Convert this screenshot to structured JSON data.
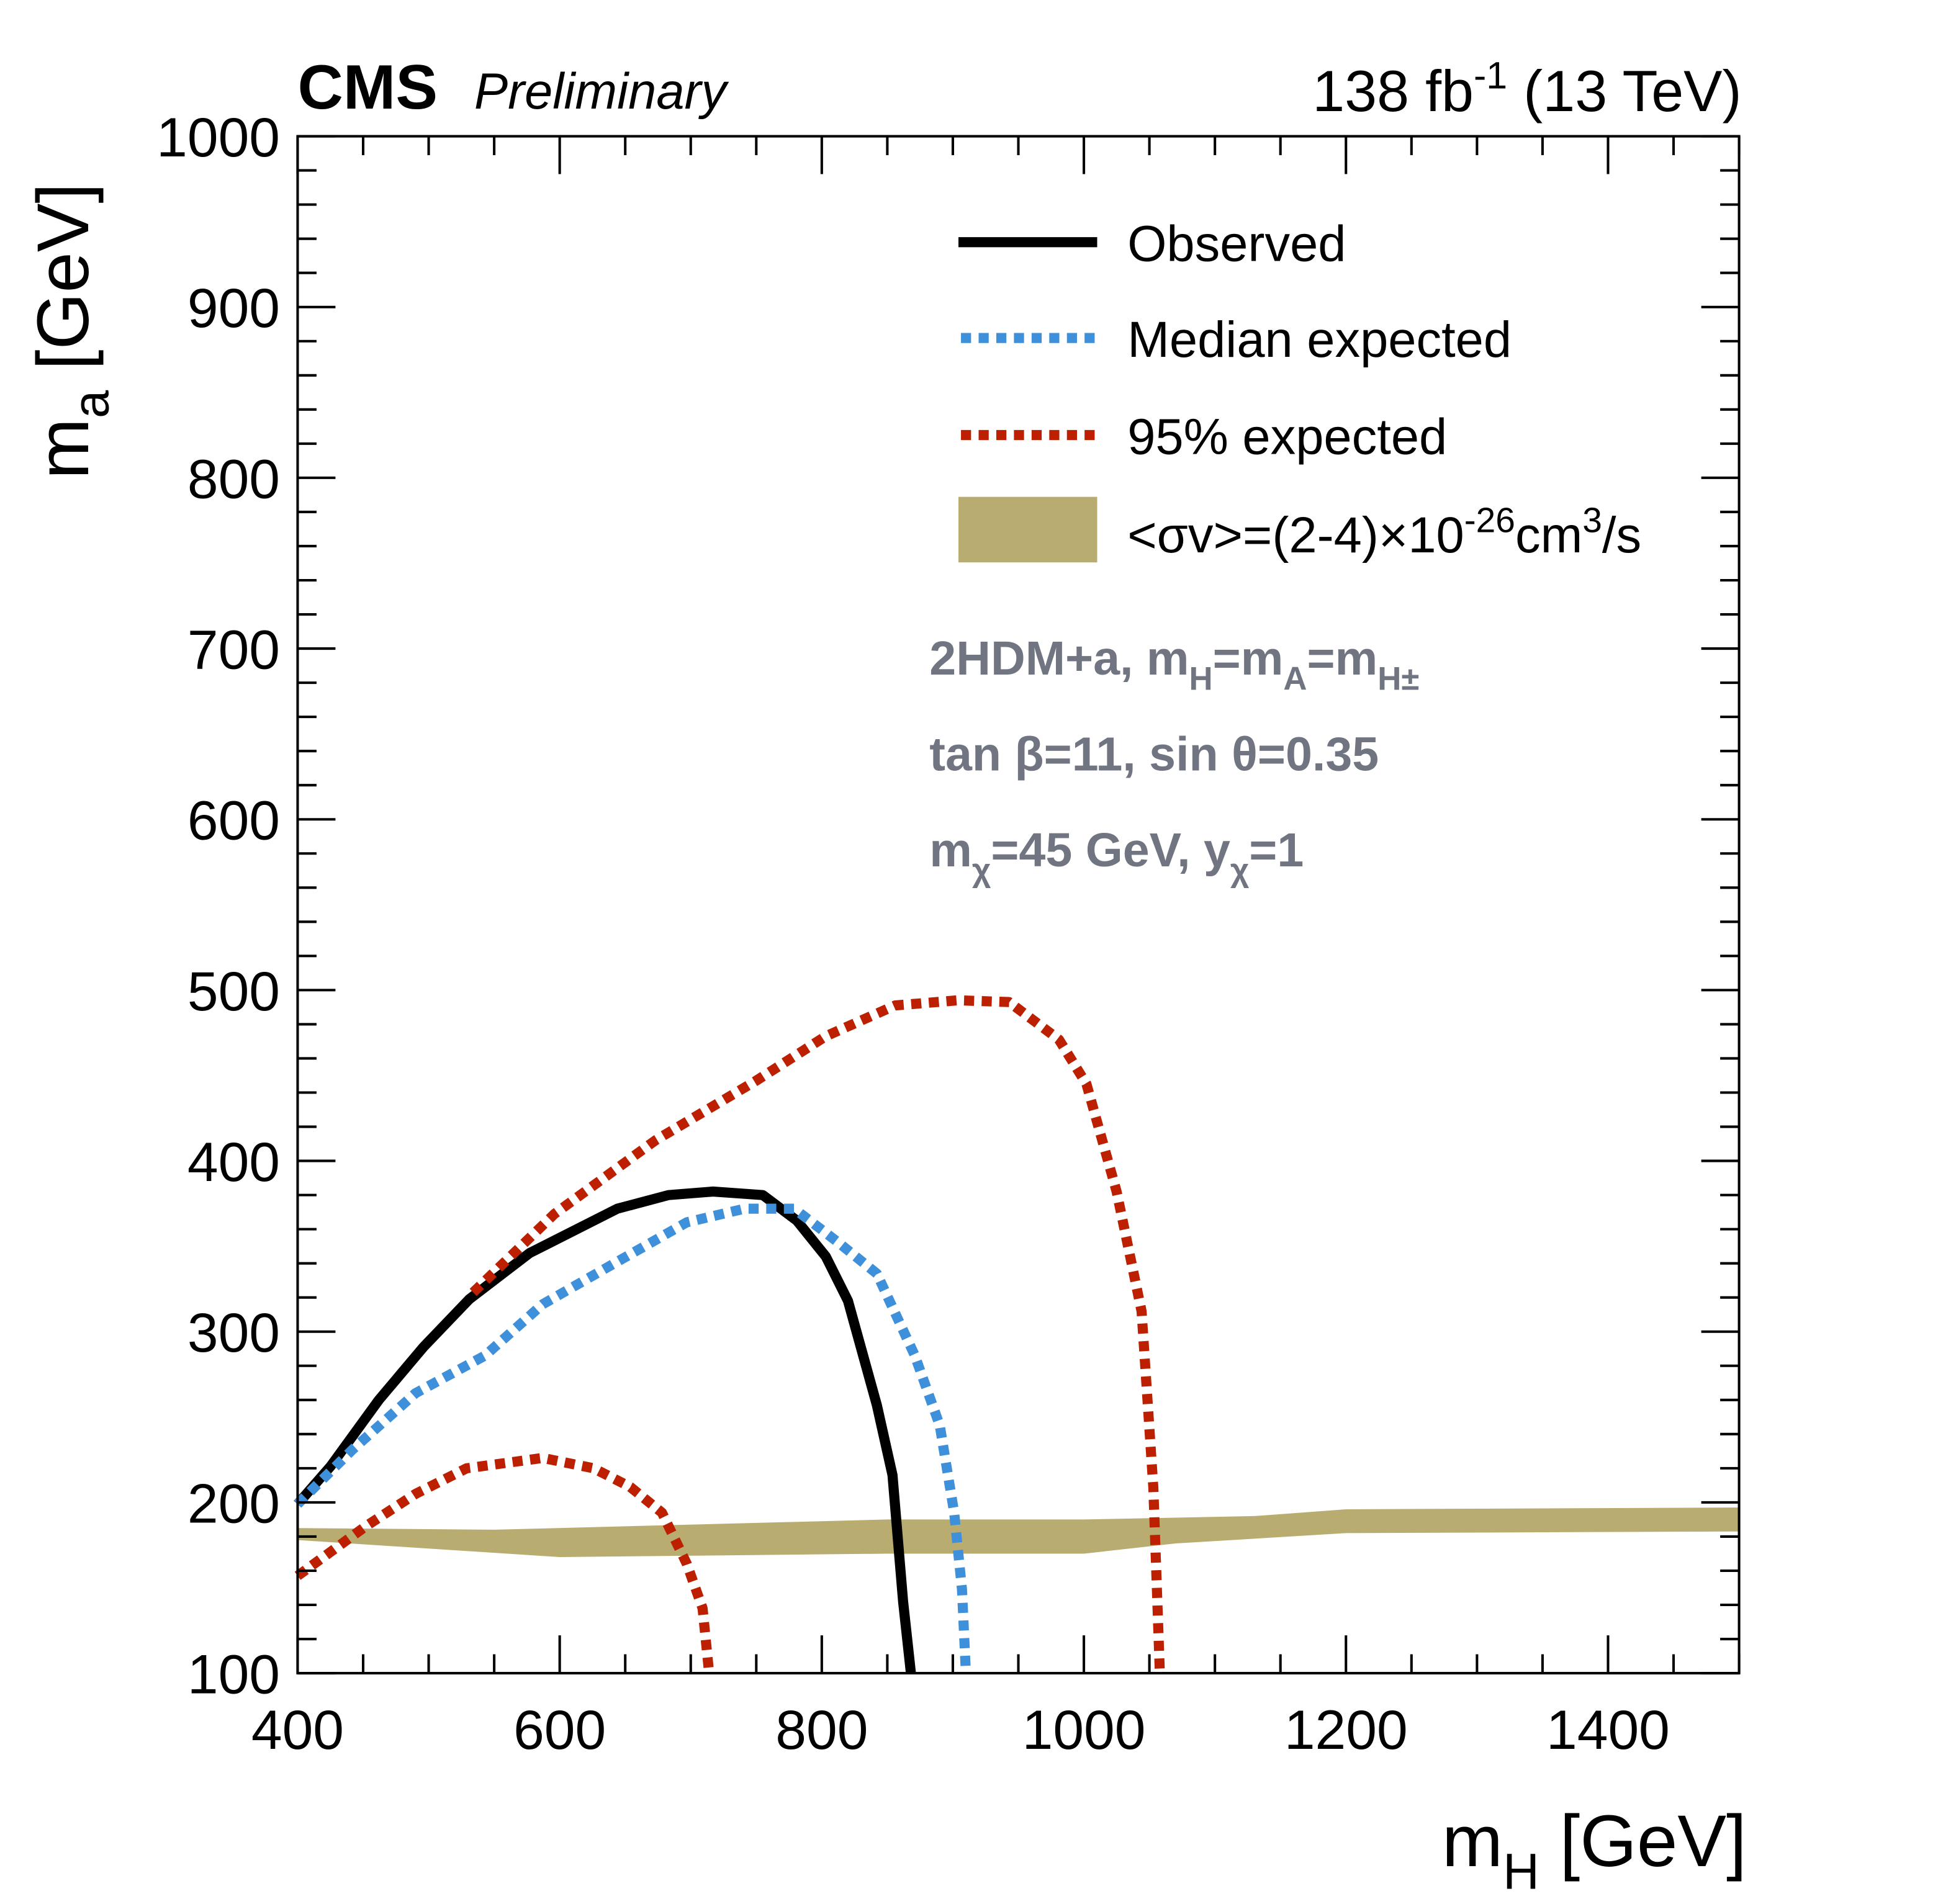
{
  "header": {
    "experiment": "CMS",
    "status": "Preliminary",
    "lumi": "138 fb",
    "lumi_exp": "-1",
    "energy": "(13 TeV)"
  },
  "annotation": {
    "line1": [
      "2HDM+a, m",
      "H",
      "=m",
      "A",
      "=m",
      "H±"
    ],
    "line2": "tan β=11, sin θ=0.35",
    "line3": [
      "m",
      "χ",
      "=45 GeV, y",
      "χ",
      "=1"
    ]
  },
  "chart_data": {
    "type": "line",
    "title": "",
    "xlabel": "m_H [GeV]",
    "ylabel": "m_a [GeV]",
    "xlabel_parts": [
      "m",
      "H",
      " [GeV]"
    ],
    "ylabel_parts": [
      "m",
      "a",
      " [GeV]"
    ],
    "xlim": [
      400,
      1500
    ],
    "ylim": [
      100,
      1000
    ],
    "xticks": [
      400,
      600,
      800,
      1000,
      1200,
      1400
    ],
    "yticks": [
      100,
      200,
      300,
      400,
      500,
      600,
      700,
      800,
      900,
      1000
    ],
    "grid": false,
    "legend_position": "top-right",
    "colors": {
      "observed": "#000000",
      "median": "#3f90da",
      "p95": "#bd1f01",
      "band": "#b9ac70",
      "annotation": "#717581"
    },
    "legend": {
      "observed": "Observed",
      "median": "Median expected",
      "p95": "95% expected",
      "band": [
        "<σv>=(2-4)×10",
        "-26",
        "cm",
        "3",
        "/s"
      ]
    },
    "series": [
      {
        "name": "Observed",
        "key": "observed",
        "points": [
          [
            400,
            199
          ],
          [
            425,
            221
          ],
          [
            462,
            260
          ],
          [
            496,
            291
          ],
          [
            531,
            319
          ],
          [
            577,
            346
          ],
          [
            644,
            372
          ],
          [
            683,
            380
          ],
          [
            717,
            382
          ],
          [
            755,
            380
          ],
          [
            781,
            365
          ],
          [
            803,
            344
          ],
          [
            820,
            318
          ],
          [
            842,
            257
          ],
          [
            854,
            216
          ],
          [
            862,
            142
          ],
          [
            868,
            100
          ]
        ]
      },
      {
        "name": "Median expected",
        "key": "median",
        "points": [
          [
            400,
            199
          ],
          [
            442,
            231
          ],
          [
            490,
            264
          ],
          [
            543,
            286
          ],
          [
            587,
            316
          ],
          [
            644,
            341
          ],
          [
            697,
            364
          ],
          [
            741,
            372
          ],
          [
            779,
            372
          ],
          [
            813,
            352
          ],
          [
            842,
            334
          ],
          [
            871,
            286
          ],
          [
            890,
            245
          ],
          [
            901,
            194
          ],
          [
            907,
            149
          ],
          [
            910,
            100
          ]
        ]
      },
      {
        "name": "95% expected (upper)",
        "key": "p95",
        "points": [
          [
            534,
            323
          ],
          [
            596,
            369
          ],
          [
            673,
            412
          ],
          [
            750,
            447
          ],
          [
            803,
            473
          ],
          [
            856,
            491
          ],
          [
            904,
            494
          ],
          [
            943,
            493
          ],
          [
            981,
            471
          ],
          [
            1002,
            445
          ],
          [
            1025,
            382
          ],
          [
            1044,
            312
          ],
          [
            1053,
            209
          ],
          [
            1058,
            100
          ]
        ]
      },
      {
        "name": "95% expected (lower)",
        "key": "p95",
        "points": [
          [
            400,
            157
          ],
          [
            452,
            186
          ],
          [
            490,
            205
          ],
          [
            529,
            220
          ],
          [
            587,
            226
          ],
          [
            626,
            220
          ],
          [
            654,
            209
          ],
          [
            678,
            194
          ],
          [
            697,
            164
          ],
          [
            709,
            138
          ],
          [
            714,
            100
          ]
        ]
      }
    ],
    "band": {
      "name": "<σv>=(2-4)×10^-26 cm^3/s",
      "upper": [
        [
          400,
          185
        ],
        [
          550,
          184
        ],
        [
          850,
          190
        ],
        [
          1000,
          190
        ],
        [
          1130,
          192
        ],
        [
          1200,
          196
        ],
        [
          1500,
          197
        ]
      ],
      "lower": [
        [
          400,
          178
        ],
        [
          480,
          174
        ],
        [
          600,
          168
        ],
        [
          850,
          170
        ],
        [
          1000,
          170
        ],
        [
          1070,
          176
        ],
        [
          1200,
          182
        ],
        [
          1500,
          183
        ]
      ]
    }
  }
}
